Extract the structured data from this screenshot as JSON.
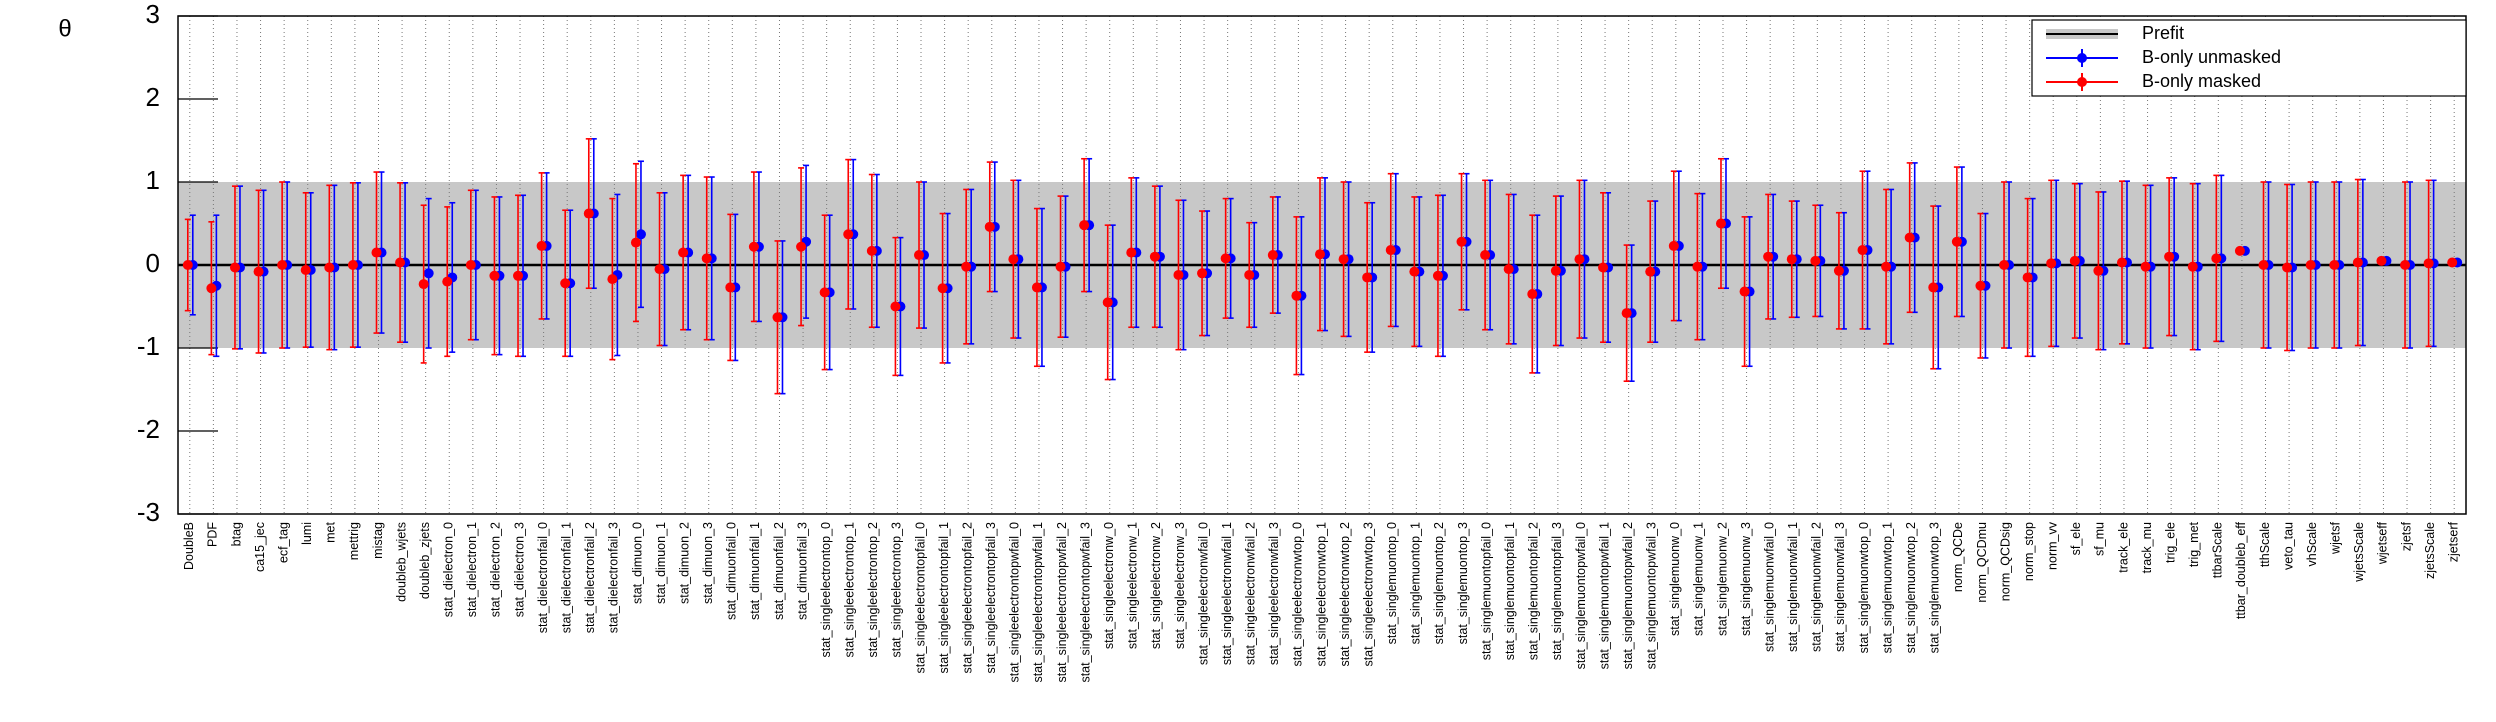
{
  "chart_data": {
    "type": "errorbar",
    "ylabel": "θ",
    "categories": [
      "DoubleB",
      "PDF",
      "btag",
      "ca15_jec",
      "ecf_tag",
      "lumi",
      "met",
      "mettrig",
      "mistag",
      "doubleb_wjets",
      "doubleb_zjets",
      "stat_dielectron_0",
      "stat_dielectron_1",
      "stat_dielectron_2",
      "stat_dielectron_3",
      "stat_dielectronfail_0",
      "stat_dielectronfail_1",
      "stat_dielectronfail_2",
      "stat_dielectronfail_3",
      "stat_dimuon_0",
      "stat_dimuon_1",
      "stat_dimuon_2",
      "stat_dimuon_3",
      "stat_dimuonfail_0",
      "stat_dimuonfail_1",
      "stat_dimuonfail_2",
      "stat_dimuonfail_3",
      "stat_singleelectrontop_0",
      "stat_singleelectrontop_1",
      "stat_singleelectrontop_2",
      "stat_singleelectrontop_3",
      "stat_singleelectrontopfail_0",
      "stat_singleelectrontopfail_1",
      "stat_singleelectrontopfail_2",
      "stat_singleelectrontopfail_3",
      "stat_singleelectrontopwfail_0",
      "stat_singleelectrontopwfail_1",
      "stat_singleelectrontopwfail_2",
      "stat_singleelectrontopwfail_3",
      "stat_singleelectronw_0",
      "stat_singleelectronw_1",
      "stat_singleelectronw_2",
      "stat_singleelectronw_3",
      "stat_singleelectronwfail_0",
      "stat_singleelectronwfail_1",
      "stat_singleelectronwfail_2",
      "stat_singleelectronwfail_3",
      "stat_singleelectronwtop_0",
      "stat_singleelectronwtop_1",
      "stat_singleelectronwtop_2",
      "stat_singleelectronwtop_3",
      "stat_singlemuontop_0",
      "stat_singlemuontop_1",
      "stat_singlemuontop_2",
      "stat_singlemuontop_3",
      "stat_singlemuontopfail_0",
      "stat_singlemuontopfail_1",
      "stat_singlemuontopfail_2",
      "stat_singlemuontopfail_3",
      "stat_singlemuontopwfail_0",
      "stat_singlemuontopwfail_1",
      "stat_singlemuontopwfail_2",
      "stat_singlemuontopwfail_3",
      "stat_singlemuonw_0",
      "stat_singlemuonw_1",
      "stat_singlemuonw_2",
      "stat_singlemuonw_3",
      "stat_singlemuonwfail_0",
      "stat_singlemuonwfail_1",
      "stat_singlemuonwfail_2",
      "stat_singlemuonwfail_3",
      "stat_singlemuonwtop_0",
      "stat_singlemuonwtop_1",
      "stat_singlemuonwtop_2",
      "stat_singlemuonwtop_3",
      "norm_QCDe",
      "norm_QCDmu",
      "norm_QCDsig",
      "norm_stop",
      "norm_vv",
      "sf_ele",
      "sf_mu",
      "track_ele",
      "track_mu",
      "trig_ele",
      "trig_met",
      "ttbarScale",
      "ttbar_doubleb_eff",
      "tthScale",
      "veto_tau",
      "vhScale",
      "wjetsf",
      "wjetsScale",
      "wjetseff",
      "zjetsf",
      "zjetsScale",
      "zjetserf"
    ],
    "prefit": {
      "name": "Prefit",
      "color": "#c8c8c8",
      "low": -1,
      "high": 1
    },
    "series": [
      {
        "name": "B-only unmasked",
        "color": "#0000ff",
        "values": [
          0,
          -0.25,
          -0.03,
          -0.08,
          0,
          -0.06,
          -0.03,
          0,
          0.15,
          0.03,
          -0.1,
          -0.15,
          0,
          -0.13,
          -0.13,
          0.23,
          -0.22,
          0.62,
          -0.12,
          0.37,
          -0.05,
          0.15,
          0.08,
          -0.27,
          0.22,
          -0.63,
          0.28,
          -0.33,
          0.37,
          0.17,
          -0.5,
          0.12,
          -0.28,
          -0.02,
          0.46,
          0.07,
          -0.27,
          -0.02,
          0.48,
          -0.45,
          0.15,
          0.1,
          -0.12,
          -0.1,
          0.08,
          -0.12,
          0.12,
          -0.37,
          0.13,
          0.07,
          -0.15,
          0.18,
          -0.08,
          -0.13,
          0.28,
          0.12,
          -0.05,
          -0.35,
          -0.07,
          0.07,
          -0.03,
          -0.58,
          -0.08,
          0.23,
          -0.02,
          0.5,
          -0.32,
          0.1,
          0.07,
          0.05,
          -0.07,
          0.18,
          -0.02,
          0.33,
          -0.27,
          0.28,
          -0.25,
          0,
          -0.15,
          0.02,
          0.05,
          -0.07,
          0.03,
          -0.02,
          0.1,
          -0.02,
          0.08,
          0.17,
          0,
          -0.03,
          0,
          0,
          0.03,
          0.05,
          0,
          0.02,
          0.03
        ],
        "errors": [
          0.6,
          0.85,
          0.98,
          0.98,
          1.0,
          0.93,
          0.99,
          0.99,
          0.97,
          0.96,
          0.9,
          0.9,
          0.9,
          0.95,
          0.97,
          0.88,
          0.88,
          0.9,
          0.97,
          0.88,
          0.92,
          0.93,
          0.98,
          0.88,
          0.9,
          0.92,
          0.92,
          0.93,
          0.9,
          0.92,
          0.83,
          0.88,
          0.9,
          0.93,
          0.78,
          0.95,
          0.95,
          0.85,
          0.8,
          0.93,
          0.9,
          0.85,
          0.9,
          0.75,
          0.72,
          0.63,
          0.7,
          0.95,
          0.92,
          0.93,
          0.9,
          0.92,
          0.9,
          0.97,
          0.82,
          0.9,
          0.9,
          0.95,
          0.9,
          0.95,
          0.9,
          0.82,
          0.85,
          0.9,
          0.88,
          0.78,
          0.9,
          0.75,
          0.7,
          0.67,
          0.7,
          0.95,
          0.93,
          0.9,
          0.98,
          0.9,
          0.87,
          1.0,
          0.95,
          1.0,
          0.93,
          0.95,
          0.98,
          0.98,
          0.95,
          1.0,
          1.0,
          0.03,
          1.0,
          1.0,
          1.0,
          1.0,
          1.0,
          0.02,
          1.0,
          1.0,
          0.02
        ]
      },
      {
        "name": "B-only masked",
        "color": "#ff0000",
        "values": [
          0,
          -0.28,
          -0.03,
          -0.08,
          0,
          -0.06,
          -0.03,
          0,
          0.15,
          0.03,
          -0.23,
          -0.2,
          0,
          -0.13,
          -0.13,
          0.23,
          -0.22,
          0.62,
          -0.17,
          0.27,
          -0.05,
          0.15,
          0.08,
          -0.27,
          0.22,
          -0.63,
          0.22,
          -0.33,
          0.37,
          0.17,
          -0.5,
          0.12,
          -0.28,
          -0.02,
          0.46,
          0.07,
          -0.27,
          -0.02,
          0.48,
          -0.45,
          0.15,
          0.1,
          -0.12,
          -0.1,
          0.08,
          -0.12,
          0.12,
          -0.37,
          0.13,
          0.07,
          -0.15,
          0.18,
          -0.08,
          -0.13,
          0.28,
          0.12,
          -0.05,
          -0.35,
          -0.07,
          0.07,
          -0.03,
          -0.58,
          -0.08,
          0.23,
          -0.02,
          0.5,
          -0.32,
          0.1,
          0.07,
          0.05,
          -0.07,
          0.18,
          -0.02,
          0.33,
          -0.27,
          0.28,
          -0.25,
          0,
          -0.15,
          0.02,
          0.05,
          -0.07,
          0.03,
          -0.02,
          0.1,
          -0.02,
          0.08,
          0.17,
          0,
          -0.03,
          0,
          0,
          0.03,
          0.05,
          0,
          0.02,
          0.03
        ],
        "errors": [
          0.55,
          0.8,
          0.98,
          0.98,
          1.0,
          0.93,
          0.99,
          0.99,
          0.97,
          0.96,
          0.95,
          0.9,
          0.9,
          0.95,
          0.97,
          0.88,
          0.88,
          0.9,
          0.97,
          0.95,
          0.92,
          0.93,
          0.98,
          0.88,
          0.9,
          0.92,
          0.95,
          0.93,
          0.9,
          0.92,
          0.83,
          0.88,
          0.9,
          0.93,
          0.78,
          0.95,
          0.95,
          0.85,
          0.8,
          0.93,
          0.9,
          0.85,
          0.9,
          0.75,
          0.72,
          0.63,
          0.7,
          0.95,
          0.92,
          0.93,
          0.9,
          0.92,
          0.9,
          0.97,
          0.82,
          0.9,
          0.9,
          0.95,
          0.9,
          0.95,
          0.9,
          0.82,
          0.85,
          0.9,
          0.88,
          0.78,
          0.9,
          0.75,
          0.7,
          0.67,
          0.7,
          0.95,
          0.93,
          0.9,
          0.98,
          0.9,
          0.87,
          1.0,
          0.95,
          1.0,
          0.93,
          0.95,
          0.98,
          0.98,
          0.95,
          1.0,
          1.0,
          0.03,
          1.0,
          1.0,
          1.0,
          1.0,
          1.0,
          0.02,
          1.0,
          1.0,
          0.02
        ]
      }
    ],
    "ylim": [
      -3,
      3
    ],
    "yticks": [
      -3,
      -2,
      -1,
      0,
      1,
      2,
      3
    ],
    "xgrid": true,
    "legend": "upper right"
  }
}
